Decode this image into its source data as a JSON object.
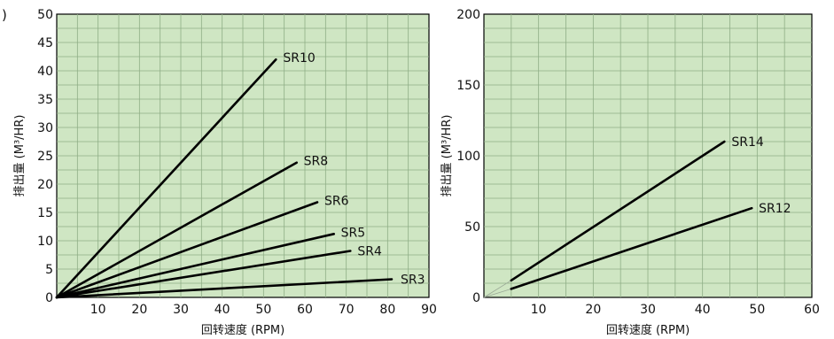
{
  "chart_data": [
    {
      "type": "line",
      "corner_label": ")",
      "xlabel": "回转速度 (RPM)",
      "ylabel": "排出量 (M³/HR)",
      "xlim": [
        0,
        90
      ],
      "ylim": [
        0,
        50
      ],
      "x_ticks": [
        "10",
        "20",
        "30",
        "40",
        "50",
        "60",
        "70",
        "80",
        "90"
      ],
      "y_ticks": [
        "0",
        "5",
        "10",
        "15",
        "20",
        "25",
        "30",
        "35",
        "40",
        "45",
        "50"
      ],
      "grid": true,
      "background": "#cfe6c3",
      "grid_color": "#8fae86",
      "line_color": "#000000",
      "series": [
        {
          "name": "SR10",
          "points": [
            [
              0,
              0
            ],
            [
              53,
              42
            ]
          ]
        },
        {
          "name": "SR8",
          "points": [
            [
              0,
              0
            ],
            [
              58,
              23.8
            ]
          ]
        },
        {
          "name": "SR6",
          "points": [
            [
              0,
              0
            ],
            [
              63,
              16.8
            ]
          ]
        },
        {
          "name": "SR5",
          "points": [
            [
              0,
              0
            ],
            [
              67,
              11.2
            ]
          ]
        },
        {
          "name": "SR4",
          "points": [
            [
              0,
              0
            ],
            [
              71,
              8.2
            ]
          ]
        },
        {
          "name": "SR3",
          "points": [
            [
              0,
              0
            ],
            [
              81,
              3.2
            ]
          ]
        }
      ]
    },
    {
      "type": "line",
      "xlabel": "回转速度 (RPM)",
      "ylabel": "排出量 (M³/HR)",
      "xlim": [
        0,
        60
      ],
      "ylim": [
        0,
        200
      ],
      "x_ticks": [
        "10",
        "20",
        "30",
        "40",
        "50",
        "60"
      ],
      "y_ticks": [
        "0",
        "50",
        "100",
        "150",
        "200"
      ],
      "grid": true,
      "background": "#cfe6c3",
      "grid_color": "#8fae86",
      "line_color": "#000000",
      "series": [
        {
          "name": "SR14",
          "points": [
            [
              5,
              12
            ],
            [
              44,
              110
            ]
          ]
        },
        {
          "name": "SR12",
          "points": [
            [
              5,
              6
            ],
            [
              49,
              63
            ]
          ]
        }
      ]
    }
  ]
}
